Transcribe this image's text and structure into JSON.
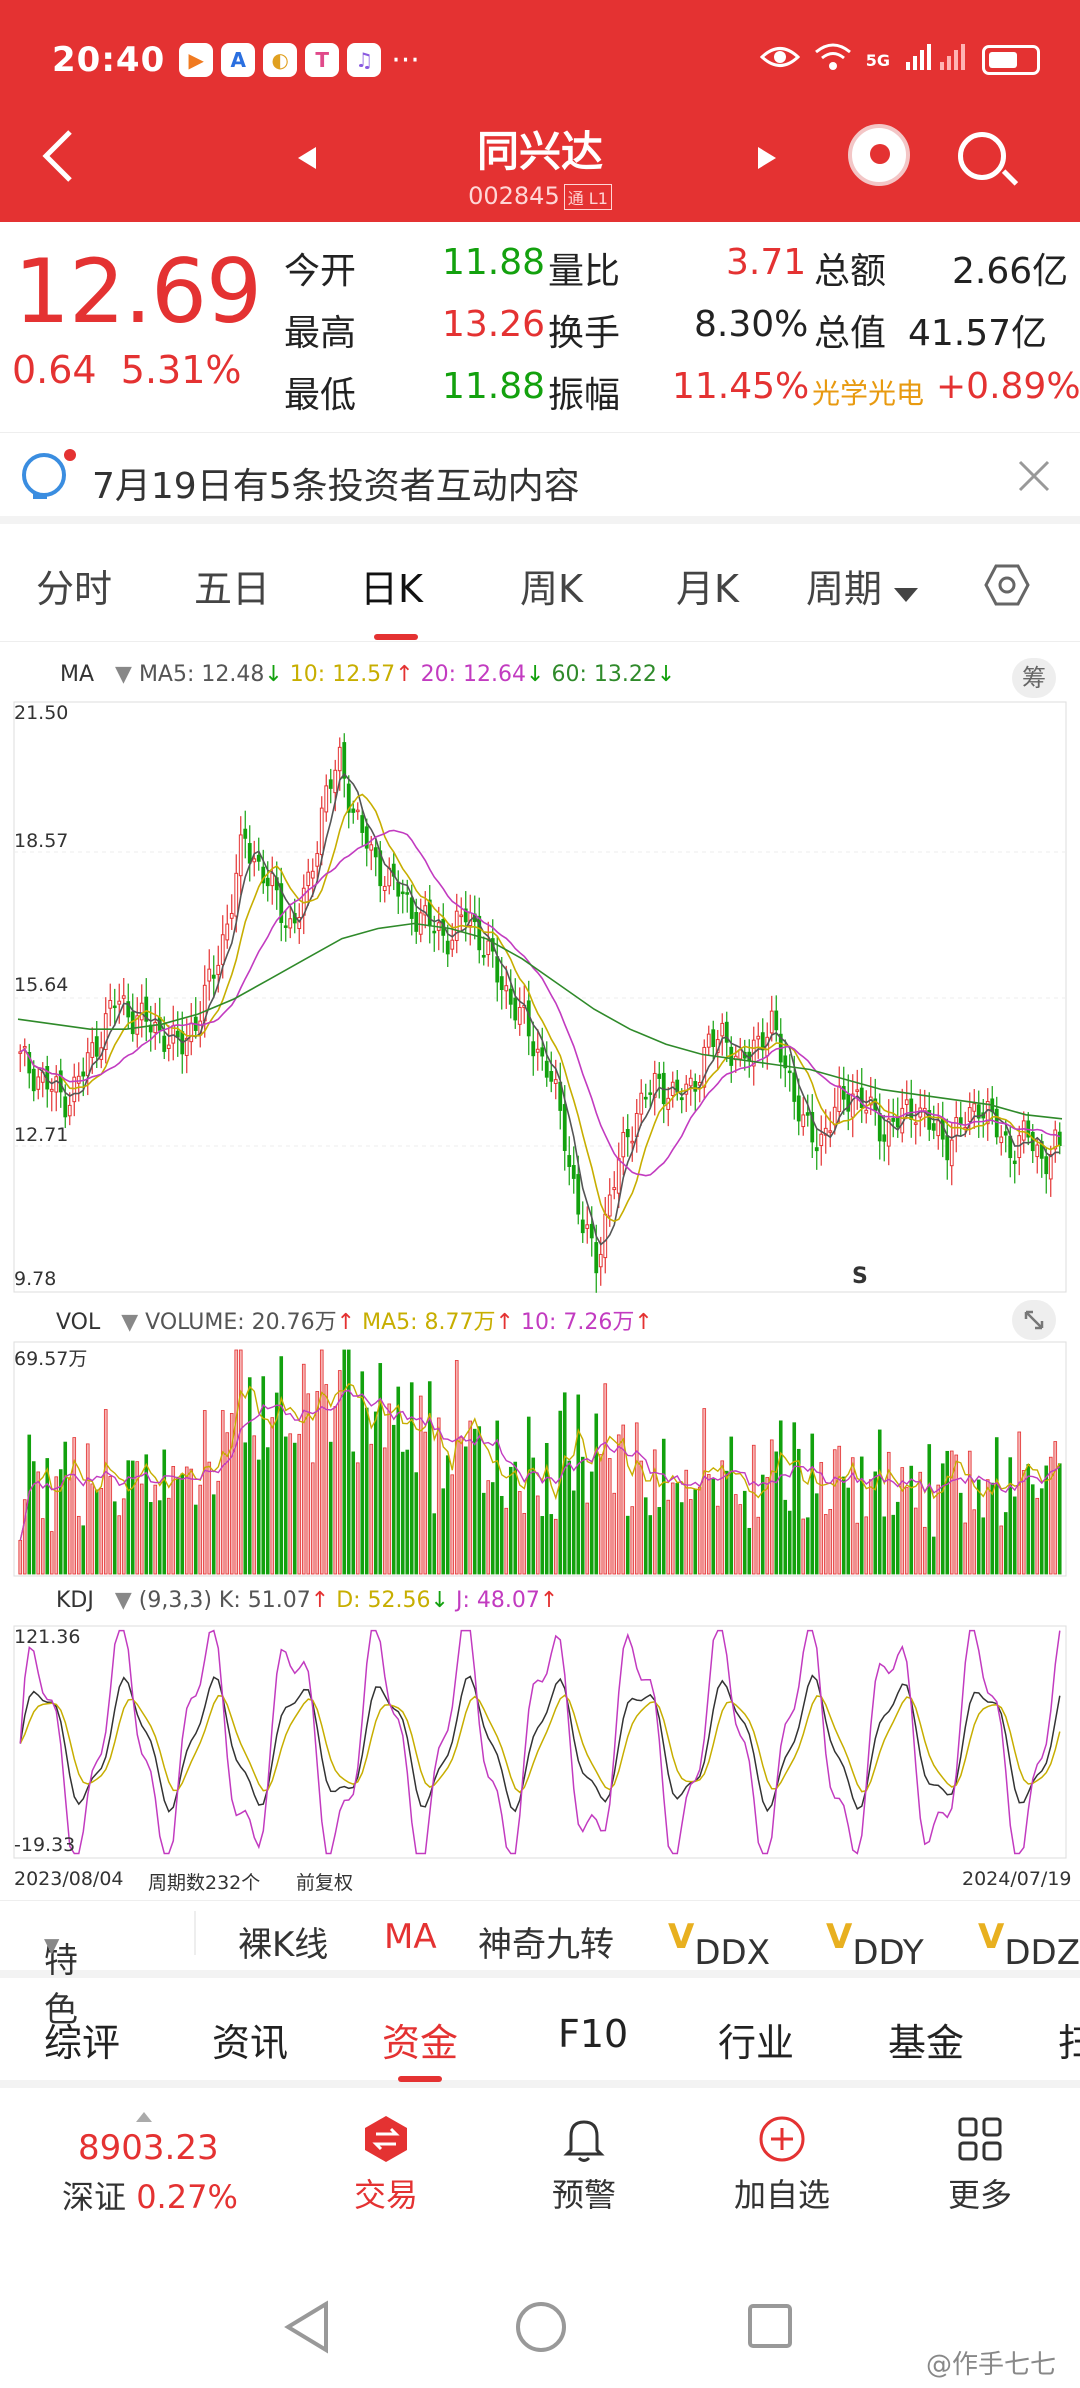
{
  "status": {
    "time": "20:40",
    "app_icons": [
      "▶",
      "A",
      "◐",
      "T",
      "♫"
    ],
    "more": "···",
    "network": "5G"
  },
  "header": {
    "name": "同兴达",
    "code": "002845",
    "tag": "通 L1"
  },
  "quote": {
    "price": "12.69",
    "change": "0.64",
    "change_pct": "5.31%",
    "rows": [
      {
        "l1": "今开",
        "v1": "11.88",
        "l2": "量比",
        "v2": "3.71",
        "l3": "总额",
        "v3": "2.66亿"
      },
      {
        "l1": "最高",
        "v1": "13.26",
        "l2": "换手",
        "v2": "8.30%",
        "l3": "总值",
        "v3": "41.57亿"
      },
      {
        "l1": "最低",
        "v1": "11.88",
        "l2": "振幅",
        "v2": "11.45%",
        "l3": "光学光电",
        "v3": "+0.89%"
      }
    ]
  },
  "notice": {
    "text": "7月19日有5条投资者互动内容"
  },
  "period_tabs": [
    "分时",
    "五日",
    "日K",
    "周K",
    "月K",
    "周期"
  ],
  "indicators": {
    "ma": {
      "name": "MA",
      "ma5": "MA5: 12.48",
      "ma10": "10: 12.57",
      "ma20": "20: 12.64",
      "ma60": "60: 13.22"
    },
    "vol": {
      "name": "VOL",
      "volume": "VOLUME: 20.76万",
      "ma5": "MA5: 8.77万",
      "ma10": "10: 7.26万"
    },
    "kdj": {
      "name": "KDJ",
      "params": "(9,3,3)",
      "k": "K: 51.07",
      "d": "D: 52.56",
      "j": "J: 48.07"
    },
    "chou": "筹"
  },
  "chart_data": {
    "type": "candlestick",
    "price_axis": [
      "21.50",
      "18.57",
      "15.64",
      "12.71",
      "9.78"
    ],
    "price_range": [
      9.78,
      21.5
    ],
    "vol_axis_max": "69.57万",
    "kdj_axis": [
      "121.36",
      "-19.33"
    ],
    "signal_marker": "S",
    "x_start": "2023/08/04",
    "x_end": "2024/07/19",
    "period_count": "周期数232个",
    "adjust": "前复权",
    "close_trend": [
      14.4,
      14.1,
      13.8,
      13.6,
      14.2,
      14.9,
      15.6,
      15.3,
      15.1,
      14.9,
      14.6,
      15.2,
      16.0,
      17.2,
      18.8,
      18.2,
      17.6,
      17.0,
      17.8,
      19.6,
      20.3,
      19.2,
      18.4,
      18.0,
      17.6,
      17.2,
      17.0,
      16.8,
      17.4,
      16.6,
      16.0,
      15.4,
      14.8,
      14.2,
      13.0,
      11.2,
      10.4,
      11.8,
      13.0,
      13.6,
      14.0,
      13.6,
      13.9,
      14.6,
      15.0,
      14.2,
      14.8,
      15.0,
      14.2,
      13.0,
      12.8,
      13.4,
      13.8,
      13.4,
      13.0,
      13.2,
      13.5,
      13.0,
      12.8,
      13.1,
      13.6,
      13.0,
      12.6,
      12.9,
      12.4,
      12.69
    ],
    "ma60_trend": [
      15.2,
      15.1,
      15.0,
      15.0,
      15.1,
      15.3,
      15.6,
      16.0,
      16.4,
      16.8,
      17.0,
      17.1,
      17.0,
      16.8,
      16.4,
      15.9,
      15.4,
      15.0,
      14.7,
      14.5,
      14.4,
      14.3,
      14.2,
      14.0,
      13.8,
      13.7,
      13.6,
      13.5,
      13.3,
      13.22
    ]
  },
  "indicator_toolbar": {
    "tese": "特色",
    "items": [
      "裸K线",
      "MA",
      "神奇九转",
      "DDX",
      "DDY",
      "DDZ"
    ]
  },
  "section_tabs": [
    "综评",
    "资讯",
    "资金",
    "F10",
    "行业",
    "基金",
    "扫"
  ],
  "bottom": {
    "index_value": "8903.23",
    "index_name": "深证",
    "index_pct": "0.27%",
    "trade": "交易",
    "alert": "预警",
    "add": "加自选",
    "more": "更多"
  },
  "watermark": "@作手七七",
  "colors": {
    "red": "#e43232",
    "green": "#13a10e",
    "ma10": "#c7ae00",
    "ma20": "#c23bc0",
    "ma60": "#2f8a2a"
  }
}
